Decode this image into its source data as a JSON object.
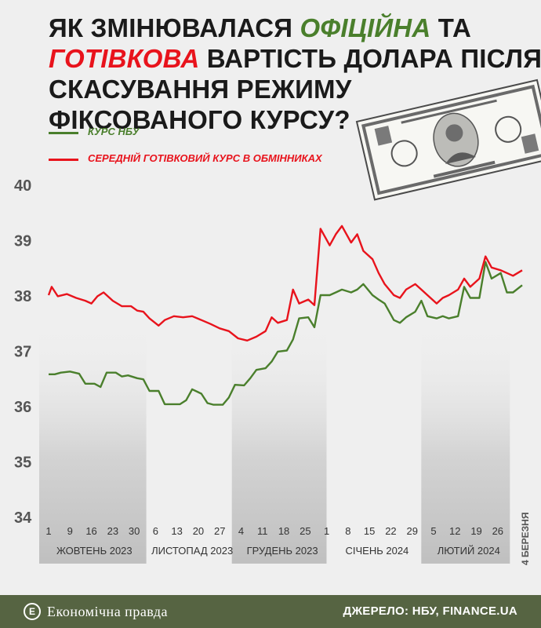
{
  "title": {
    "part1": "Як змінювалася ",
    "official": "офіційна",
    "part2": " та ",
    "cash": "готівкова",
    "part3": " вартість долара після скасування режиму фіксованого курсу?"
  },
  "colors": {
    "nbu": "#4a7f2c",
    "cash": "#e8131c",
    "band": "#bdbdbd",
    "footer": "#566442"
  },
  "footer": {
    "brand": "Економічна правда",
    "logo_glyph": "Е",
    "source": "ДЖЕРЕЛО: НБУ, FINANCE.UA"
  },
  "icons": {
    "banknote": "dollar-bill-illustration",
    "logo": "ep-logo-icon"
  },
  "chart_data": {
    "type": "line",
    "ylim": [
      34,
      40
    ],
    "yticks": [
      34,
      35,
      36,
      37,
      38,
      39,
      40
    ],
    "xticks": [
      "1",
      "9",
      "16",
      "23",
      "30",
      "6",
      "13",
      "20",
      "27",
      "4",
      "11",
      "18",
      "25",
      "1",
      "8",
      "15",
      "22",
      "29",
      "5",
      "12",
      "19",
      "26"
    ],
    "months": [
      "ЖОВТЕНЬ 2023",
      "ЛИСТОПАД 2023",
      "ГРУДЕНЬ 2023",
      "СІЧЕНЬ 2024",
      "ЛЮТИЙ 2024"
    ],
    "end_label": "4 БЕРЕЗНЯ",
    "x_start": "2023-10-01",
    "x_end": "2024-03-04",
    "series": [
      {
        "name": "КУРС НБУ",
        "points": [
          [
            "2023-10-01",
            36.57
          ],
          [
            "2023-10-03",
            36.57
          ],
          [
            "2023-10-05",
            36.6
          ],
          [
            "2023-10-08",
            36.62
          ],
          [
            "2023-10-11",
            36.58
          ],
          [
            "2023-10-13",
            36.4
          ],
          [
            "2023-10-16",
            36.4
          ],
          [
            "2023-10-18",
            36.34
          ],
          [
            "2023-10-20",
            36.6
          ],
          [
            "2023-10-23",
            36.6
          ],
          [
            "2023-10-25",
            36.53
          ],
          [
            "2023-10-27",
            36.55
          ],
          [
            "2023-10-30",
            36.5
          ],
          [
            "2023-11-01",
            36.48
          ],
          [
            "2023-11-03",
            36.27
          ],
          [
            "2023-11-06",
            36.27
          ],
          [
            "2023-11-08",
            36.03
          ],
          [
            "2023-11-10",
            36.03
          ],
          [
            "2023-11-13",
            36.03
          ],
          [
            "2023-11-15",
            36.1
          ],
          [
            "2023-11-17",
            36.3
          ],
          [
            "2023-11-20",
            36.22
          ],
          [
            "2023-11-22",
            36.05
          ],
          [
            "2023-11-24",
            36.02
          ],
          [
            "2023-11-27",
            36.02
          ],
          [
            "2023-11-29",
            36.15
          ],
          [
            "2023-12-01",
            36.38
          ],
          [
            "2023-12-04",
            36.37
          ],
          [
            "2023-12-06",
            36.5
          ],
          [
            "2023-12-08",
            36.65
          ],
          [
            "2023-12-11",
            36.68
          ],
          [
            "2023-12-13",
            36.8
          ],
          [
            "2023-12-15",
            36.98
          ],
          [
            "2023-12-18",
            37.0
          ],
          [
            "2023-12-20",
            37.2
          ],
          [
            "2023-12-22",
            37.58
          ],
          [
            "2023-12-25",
            37.6
          ],
          [
            "2023-12-27",
            37.42
          ],
          [
            "2023-12-29",
            38.0
          ],
          [
            "2024-01-01",
            38.0
          ],
          [
            "2024-01-03",
            38.05
          ],
          [
            "2024-01-05",
            38.1
          ],
          [
            "2024-01-08",
            38.05
          ],
          [
            "2024-01-10",
            38.1
          ],
          [
            "2024-01-12",
            38.2
          ],
          [
            "2024-01-15",
            38.0
          ],
          [
            "2024-01-17",
            37.92
          ],
          [
            "2024-01-19",
            37.85
          ],
          [
            "2024-01-22",
            37.55
          ],
          [
            "2024-01-24",
            37.5
          ],
          [
            "2024-01-26",
            37.6
          ],
          [
            "2024-01-29",
            37.7
          ],
          [
            "2024-01-31",
            37.9
          ],
          [
            "2024-02-02",
            37.62
          ],
          [
            "2024-02-05",
            37.58
          ],
          [
            "2024-02-07",
            37.62
          ],
          [
            "2024-02-09",
            37.58
          ],
          [
            "2024-02-12",
            37.62
          ],
          [
            "2024-02-14",
            38.15
          ],
          [
            "2024-02-16",
            37.95
          ],
          [
            "2024-02-19",
            37.95
          ],
          [
            "2024-02-21",
            38.6
          ],
          [
            "2024-02-23",
            38.3
          ],
          [
            "2024-02-26",
            38.4
          ],
          [
            "2024-02-28",
            38.05
          ],
          [
            "2024-03-01",
            38.05
          ],
          [
            "2024-03-04",
            38.18
          ]
        ]
      },
      {
        "name": "СЕРЕДНІЙ ГОТІВКОВИЙ КУРС В ОБМІННИКАХ",
        "points": [
          [
            "2023-10-01",
            38.0
          ],
          [
            "2023-10-02",
            38.15
          ],
          [
            "2023-10-04",
            37.98
          ],
          [
            "2023-10-07",
            38.02
          ],
          [
            "2023-10-10",
            37.95
          ],
          [
            "2023-10-13",
            37.9
          ],
          [
            "2023-10-15",
            37.85
          ],
          [
            "2023-10-17",
            37.98
          ],
          [
            "2023-10-19",
            38.05
          ],
          [
            "2023-10-22",
            37.9
          ],
          [
            "2023-10-25",
            37.8
          ],
          [
            "2023-10-28",
            37.8
          ],
          [
            "2023-10-30",
            37.72
          ],
          [
            "2023-11-01",
            37.7
          ],
          [
            "2023-11-03",
            37.58
          ],
          [
            "2023-11-06",
            37.45
          ],
          [
            "2023-11-08",
            37.55
          ],
          [
            "2023-11-11",
            37.62
          ],
          [
            "2023-11-14",
            37.6
          ],
          [
            "2023-11-17",
            37.62
          ],
          [
            "2023-11-20",
            37.55
          ],
          [
            "2023-11-23",
            37.48
          ],
          [
            "2023-11-26",
            37.4
          ],
          [
            "2023-11-29",
            37.35
          ],
          [
            "2023-12-02",
            37.22
          ],
          [
            "2023-12-05",
            37.18
          ],
          [
            "2023-12-08",
            37.25
          ],
          [
            "2023-12-11",
            37.35
          ],
          [
            "2023-12-13",
            37.6
          ],
          [
            "2023-12-15",
            37.5
          ],
          [
            "2023-12-18",
            37.55
          ],
          [
            "2023-12-20",
            38.1
          ],
          [
            "2023-12-22",
            37.85
          ],
          [
            "2023-12-25",
            37.92
          ],
          [
            "2023-12-27",
            37.82
          ],
          [
            "2023-12-29",
            39.2
          ],
          [
            "2024-01-01",
            38.9
          ],
          [
            "2024-01-03",
            39.1
          ],
          [
            "2024-01-05",
            39.25
          ],
          [
            "2024-01-08",
            38.95
          ],
          [
            "2024-01-10",
            39.1
          ],
          [
            "2024-01-12",
            38.8
          ],
          [
            "2024-01-15",
            38.65
          ],
          [
            "2024-01-17",
            38.4
          ],
          [
            "2024-01-19",
            38.2
          ],
          [
            "2024-01-22",
            38.0
          ],
          [
            "2024-01-24",
            37.95
          ],
          [
            "2024-01-26",
            38.1
          ],
          [
            "2024-01-29",
            38.2
          ],
          [
            "2024-01-31",
            38.1
          ],
          [
            "2024-02-02",
            38.0
          ],
          [
            "2024-02-05",
            37.85
          ],
          [
            "2024-02-07",
            37.95
          ],
          [
            "2024-02-09",
            38.0
          ],
          [
            "2024-02-12",
            38.1
          ],
          [
            "2024-02-14",
            38.3
          ],
          [
            "2024-02-16",
            38.15
          ],
          [
            "2024-02-19",
            38.3
          ],
          [
            "2024-02-21",
            38.7
          ],
          [
            "2024-02-23",
            38.5
          ],
          [
            "2024-02-26",
            38.45
          ],
          [
            "2024-02-28",
            38.4
          ],
          [
            "2024-03-01",
            38.35
          ],
          [
            "2024-03-04",
            38.45
          ]
        ]
      }
    ]
  }
}
